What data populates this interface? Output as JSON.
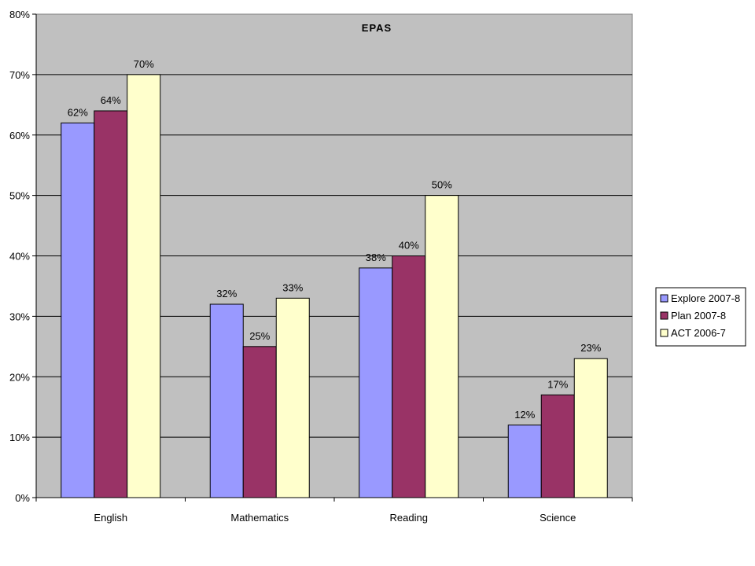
{
  "chart_data": {
    "type": "bar",
    "title": "EPAS",
    "xlabel": "",
    "ylabel": "",
    "categories": [
      "English",
      "Mathematics",
      "Reading",
      "Science"
    ],
    "series": [
      {
        "name": "Explore 2007-8",
        "values": [
          62,
          32,
          38,
          12
        ],
        "color": "#9999ff",
        "labels": [
          "62%",
          "32%",
          "38%",
          "12%"
        ]
      },
      {
        "name": "Plan 2007-8",
        "values": [
          64,
          25,
          40,
          17
        ],
        "color": "#993366",
        "labels": [
          "64%",
          "25%",
          "40%",
          "17%"
        ]
      },
      {
        "name": "ACT 2006-7",
        "values": [
          70,
          33,
          50,
          23
        ],
        "color": "#ffffcc",
        "labels": [
          "70%",
          "33%",
          "50%",
          "23%"
        ]
      }
    ],
    "ylim": [
      0,
      80
    ],
    "y_ticks": [
      0,
      10,
      20,
      30,
      40,
      50,
      60,
      70,
      80
    ],
    "y_tick_labels": [
      "0%",
      "10%",
      "20%",
      "30%",
      "40%",
      "50%",
      "60%",
      "70%",
      "80%"
    ],
    "grid": true,
    "legend_position": "right",
    "plot_background": "#c0c0c0"
  }
}
